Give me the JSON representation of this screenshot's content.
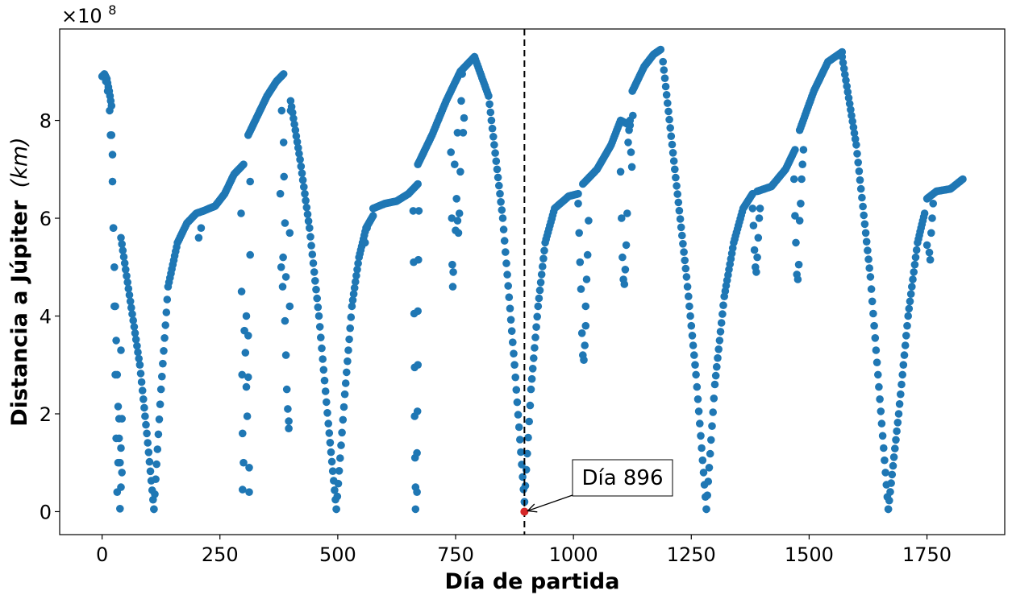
{
  "chart_data": {
    "type": "scatter",
    "xlabel": "Día de partida",
    "ylabel_bold": "Distancia a Júpiter",
    "ylabel_unit": "(km)",
    "offset_text": "×10",
    "offset_exp": "8",
    "xlim": [
      -90,
      1915
    ],
    "ylim": [
      -0.47,
      9.87
    ],
    "y_scale": 100000000,
    "xticks": [
      0,
      250,
      500,
      750,
      1000,
      1250,
      1500,
      1750
    ],
    "yticks": [
      0,
      2,
      4,
      6,
      8
    ],
    "grid": false,
    "marker_color": "#1f77b4",
    "highlight_color": "#d62728",
    "vline": {
      "x": 896,
      "style": "dashed",
      "color": "#000000"
    },
    "highlight_point": {
      "x": 896,
      "y": 0.0
    },
    "annotation": {
      "text": "Día 896",
      "x": 896,
      "y": 0.0
    },
    "segments": [
      {
        "x": [
          0,
          5,
          10,
          15,
          20
        ],
        "y": [
          8.9,
          8.95,
          8.85,
          8.6,
          8.3
        ]
      },
      {
        "x": [
          20,
          24,
          28,
          32,
          36,
          40
        ],
        "y": [
          7.7,
          5.8,
          4.2,
          2.8,
          1.5,
          0.5
        ]
      },
      {
        "x": [
          40,
          60,
          80,
          95,
          110
        ],
        "y": [
          5.6,
          4.3,
          3.0,
          1.6,
          0.05
        ]
      },
      {
        "x": [
          110,
          125,
          140,
          160,
          180,
          200,
          215
        ],
        "y": [
          0.05,
          2.5,
          4.6,
          5.5,
          5.9,
          6.1,
          6.15
        ]
      },
      {
        "x": [
          215,
          240,
          260,
          280,
          300
        ],
        "y": [
          6.15,
          6.25,
          6.5,
          6.9,
          7.1
        ]
      },
      {
        "x": [
          310,
          330,
          350,
          370,
          385
        ],
        "y": [
          7.7,
          8.1,
          8.5,
          8.8,
          8.95
        ]
      },
      {
        "x": [
          400,
          420,
          440,
          460,
          480,
          497
        ],
        "y": [
          8.4,
          7.2,
          5.8,
          4.0,
          1.8,
          0.05
        ]
      },
      {
        "x": [
          497,
          515,
          530,
          545,
          560,
          575
        ],
        "y": [
          0.05,
          2.4,
          4.2,
          5.2,
          5.8,
          6.05
        ]
      },
      {
        "x": [
          575,
          600,
          625,
          650,
          670
        ],
        "y": [
          6.2,
          6.3,
          6.35,
          6.5,
          6.7
        ]
      },
      {
        "x": [
          670,
          700,
          730,
          760,
          790
        ],
        "y": [
          7.1,
          7.7,
          8.4,
          9.0,
          9.3
        ]
      },
      {
        "x": [
          790,
          820,
          850,
          875,
          896
        ],
        "y": [
          9.3,
          8.5,
          6.0,
          3.0,
          0.2
        ]
      },
      {
        "x": [
          896,
          910,
          925,
          940,
          960,
          990,
          1010
        ],
        "y": [
          0.2,
          2.5,
          4.2,
          5.5,
          6.2,
          6.45,
          6.5
        ]
      },
      {
        "x": [
          1020,
          1050,
          1080,
          1100,
          1120
        ],
        "y": [
          6.7,
          7.0,
          7.5,
          8.0,
          7.9
        ]
      },
      {
        "x": [
          1125,
          1150,
          1170,
          1185
        ],
        "y": [
          8.6,
          9.1,
          9.35,
          9.45
        ]
      },
      {
        "x": [
          1190,
          1215,
          1240,
          1260,
          1282
        ],
        "y": [
          9.2,
          7.0,
          4.8,
          2.8,
          0.05
        ]
      },
      {
        "x": [
          1282,
          1300,
          1320,
          1340,
          1360,
          1380
        ],
        "y": [
          0.05,
          2.6,
          4.4,
          5.5,
          6.2,
          6.5
        ]
      },
      {
        "x": [
          1390,
          1420,
          1450,
          1470
        ],
        "y": [
          6.55,
          6.65,
          7.0,
          7.4
        ]
      },
      {
        "x": [
          1480,
          1510,
          1540,
          1570
        ],
        "y": [
          7.8,
          8.6,
          9.2,
          9.4
        ]
      },
      {
        "x": [
          1570,
          1600,
          1630,
          1650,
          1668
        ],
        "y": [
          9.3,
          7.5,
          4.8,
          2.3,
          0.05
        ]
      },
      {
        "x": [
          1668,
          1690,
          1710,
          1730,
          1745
        ],
        "y": [
          0.05,
          2.0,
          4.0,
          5.5,
          6.1
        ]
      },
      {
        "x": [
          1750,
          1770,
          1800,
          1826
        ],
        "y": [
          6.4,
          6.55,
          6.6,
          6.8
        ]
      }
    ],
    "scatter_points": [
      [
        8,
        8.8
      ],
      [
        12,
        8.6
      ],
      [
        16,
        8.2
      ],
      [
        18,
        7.7
      ],
      [
        22,
        7.3
      ],
      [
        24,
        5.8
      ],
      [
        26,
        4.2
      ],
      [
        28,
        2.8
      ],
      [
        30,
        1.5
      ],
      [
        32,
        0.4
      ],
      [
        34,
        1.0
      ],
      [
        36,
        1.9
      ],
      [
        38,
        0.06
      ],
      [
        40,
        3.3
      ],
      [
        42,
        1.9
      ],
      [
        42,
        0.8
      ],
      [
        40,
        1.3
      ],
      [
        205,
        5.6
      ],
      [
        210,
        5.8
      ],
      [
        295,
        6.1
      ],
      [
        296,
        4.5
      ],
      [
        297,
        2.8
      ],
      [
        298,
        1.6
      ],
      [
        298,
        0.45
      ],
      [
        300,
        1.0
      ],
      [
        302,
        3.7
      ],
      [
        304,
        3.25
      ],
      [
        306,
        2.55
      ],
      [
        306,
        4.0
      ],
      [
        308,
        1.95
      ],
      [
        310,
        3.6
      ],
      [
        310,
        2.75
      ],
      [
        312,
        0.9
      ],
      [
        312,
        0.4
      ],
      [
        314,
        6.75
      ],
      [
        314,
        5.25
      ],
      [
        378,
        6.5
      ],
      [
        380,
        5.0
      ],
      [
        381,
        8.2
      ],
      [
        383,
        4.6
      ],
      [
        384,
        5.2
      ],
      [
        385,
        7.55
      ],
      [
        386,
        6.85
      ],
      [
        388,
        5.9
      ],
      [
        388,
        3.9
      ],
      [
        390,
        4.8
      ],
      [
        390,
        3.2
      ],
      [
        392,
        2.5
      ],
      [
        394,
        2.1
      ],
      [
        396,
        1.7
      ],
      [
        396,
        1.85
      ],
      [
        398,
        4.2
      ],
      [
        398,
        5.7
      ],
      [
        400,
        8.2
      ],
      [
        558,
        5.5
      ],
      [
        562,
        5.8
      ],
      [
        660,
        6.15
      ],
      [
        661,
        5.1
      ],
      [
        662,
        4.05
      ],
      [
        663,
        2.95
      ],
      [
        663,
        1.95
      ],
      [
        664,
        1.1
      ],
      [
        665,
        0.5
      ],
      [
        665,
        0.05
      ],
      [
        668,
        0.4
      ],
      [
        668,
        1.2
      ],
      [
        669,
        2.05
      ],
      [
        670,
        3.0
      ],
      [
        670,
        4.1
      ],
      [
        671,
        5.15
      ],
      [
        672,
        6.15
      ],
      [
        740,
        7.35
      ],
      [
        742,
        6.0
      ],
      [
        743,
        5.05
      ],
      [
        744,
        4.6
      ],
      [
        745,
        4.9
      ],
      [
        748,
        7.1
      ],
      [
        750,
        5.75
      ],
      [
        752,
        6.4
      ],
      [
        754,
        7.75
      ],
      [
        754,
        5.95
      ],
      [
        756,
        5.7
      ],
      [
        758,
        6.1
      ],
      [
        760,
        6.95
      ],
      [
        762,
        8.4
      ],
      [
        764,
        8.95
      ],
      [
        766,
        7.75
      ],
      [
        768,
        8.05
      ],
      [
        1010,
        6.3
      ],
      [
        1012,
        5.7
      ],
      [
        1014,
        5.1
      ],
      [
        1016,
        4.55
      ],
      [
        1018,
        3.65
      ],
      [
        1020,
        3.2
      ],
      [
        1022,
        3.1
      ],
      [
        1024,
        3.4
      ],
      [
        1026,
        3.8
      ],
      [
        1026,
        4.2
      ],
      [
        1028,
        4.75
      ],
      [
        1030,
        5.25
      ],
      [
        1032,
        5.95
      ],
      [
        1100,
        6.95
      ],
      [
        1102,
        6.0
      ],
      [
        1104,
        5.2
      ],
      [
        1106,
        4.75
      ],
      [
        1108,
        4.65
      ],
      [
        1110,
        4.95
      ],
      [
        1112,
        5.45
      ],
      [
        1114,
        6.1
      ],
      [
        1116,
        7.55
      ],
      [
        1118,
        7.8
      ],
      [
        1120,
        8.0
      ],
      [
        1122,
        7.35
      ],
      [
        1124,
        7.05
      ],
      [
        1126,
        8.1
      ],
      [
        1380,
        6.2
      ],
      [
        1382,
        5.85
      ],
      [
        1384,
        5.35
      ],
      [
        1386,
        5.0
      ],
      [
        1388,
        4.9
      ],
      [
        1390,
        5.2
      ],
      [
        1392,
        5.6
      ],
      [
        1394,
        6.0
      ],
      [
        1396,
        6.2
      ],
      [
        1468,
        6.8
      ],
      [
        1470,
        6.05
      ],
      [
        1472,
        5.5
      ],
      [
        1474,
        4.85
      ],
      [
        1476,
        4.75
      ],
      [
        1478,
        5.05
      ],
      [
        1480,
        5.95
      ],
      [
        1482,
        6.3
      ],
      [
        1484,
        6.8
      ],
      [
        1486,
        7.1
      ],
      [
        1488,
        7.4
      ],
      [
        1755,
        5.3
      ],
      [
        1757,
        5.15
      ],
      [
        1759,
        5.7
      ],
      [
        1761,
        6.0
      ],
      [
        1763,
        6.3
      ],
      [
        1750,
        5.45
      ]
    ]
  }
}
